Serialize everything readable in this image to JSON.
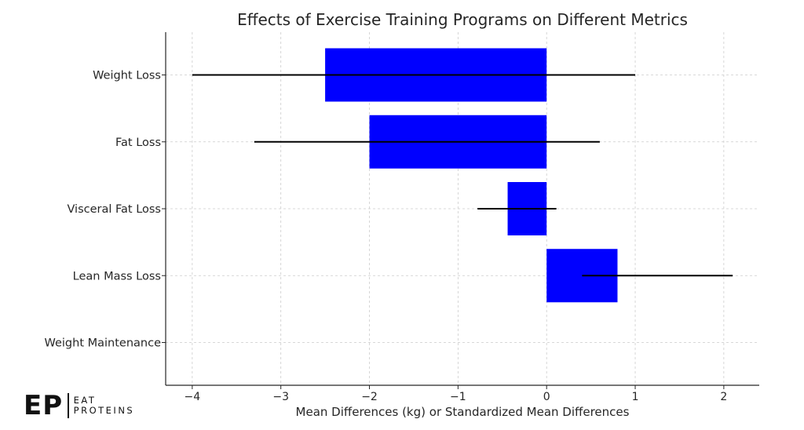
{
  "chart_data": {
    "type": "bar",
    "orientation": "horizontal",
    "title": "Effects of Exercise Training Programs on Different Metrics",
    "xlabel": "Mean Differences (kg) or Standardized Mean Differences",
    "ylabel": "",
    "categories": [
      "Weight Loss",
      "Fat Loss",
      "Visceral Fat Loss",
      "Lean Mass Loss",
      "Weight Maintenance"
    ],
    "values": [
      -2.5,
      -2.0,
      -0.44,
      0.8,
      null
    ],
    "error_low": [
      -4.0,
      -3.3,
      -0.78,
      0.4,
      null
    ],
    "error_high": [
      1.0,
      0.6,
      0.11,
      2.1,
      null
    ],
    "xlim": [
      -4.3,
      2.4
    ],
    "xticks": [
      -4,
      -3,
      -2,
      -1,
      0,
      1,
      2
    ],
    "xtick_labels": [
      "−4",
      "−3",
      "−2",
      "−1",
      "0",
      "1",
      "2"
    ],
    "grid": true,
    "bar_color": "#0000ff",
    "error_color": "#000000"
  },
  "logo": {
    "mark": "EP",
    "line1": "EAT",
    "line2": "PROTEINS"
  }
}
